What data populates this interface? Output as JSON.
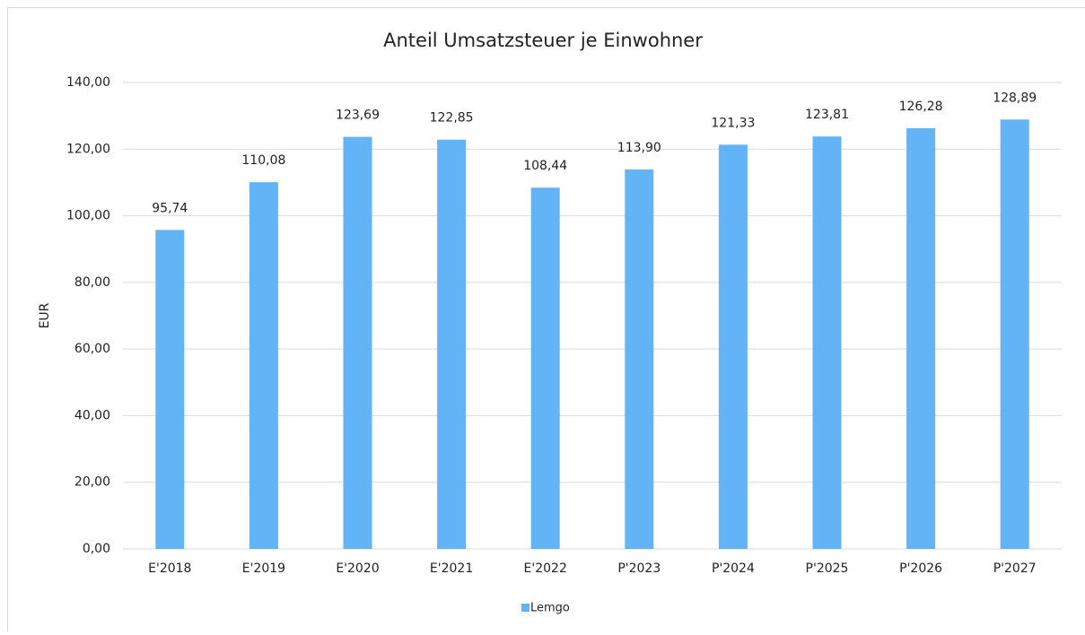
{
  "chart_data": {
    "type": "bar",
    "title": "Anteil Umsatzsteuer je Einwohner",
    "ylabel": "EUR",
    "categories": [
      "E'2018",
      "E'2019",
      "E'2020",
      "E'2021",
      "E'2022",
      "P'2023",
      "P'2024",
      "P'2025",
      "P'2026",
      "P'2027"
    ],
    "series": [
      {
        "name": "Lemgo",
        "color": "#63b4f6",
        "values": [
          95.74,
          110.08,
          123.69,
          122.85,
          108.44,
          113.9,
          121.33,
          123.81,
          126.28,
          128.89
        ],
        "value_labels": [
          "95,74",
          "110,08",
          "123,69",
          "122,85",
          "108,44",
          "113,90",
          "121,33",
          "123,81",
          "126,28",
          "128,89"
        ]
      }
    ],
    "ylim": [
      0,
      140
    ],
    "yticks": [
      {
        "value": 0,
        "label": "0,00"
      },
      {
        "value": 20,
        "label": "20,00"
      },
      {
        "value": 40,
        "label": "40,00"
      },
      {
        "value": 60,
        "label": "60,00"
      },
      {
        "value": 80,
        "label": "80,00"
      },
      {
        "value": 100,
        "label": "100,00"
      },
      {
        "value": 120,
        "label": "120,00"
      },
      {
        "value": 140,
        "label": "140,00"
      }
    ],
    "grid": true,
    "legend": "bottom"
  }
}
